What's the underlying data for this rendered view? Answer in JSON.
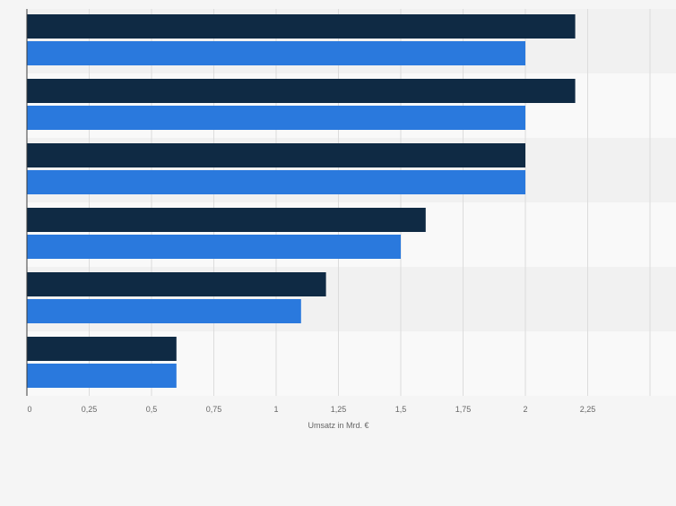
{
  "chart_data": {
    "type": "bar",
    "orientation": "horizontal",
    "categories": [
      "",
      "",
      "",
      "",
      "",
      ""
    ],
    "series": [
      {
        "values": [
          2.2,
          2.2,
          2.0,
          1.6,
          1.2,
          0.6
        ],
        "color": "#0f2a44"
      },
      {
        "values": [
          2.0,
          2.0,
          2.0,
          1.5,
          1.1,
          0.6
        ],
        "color": "#2a79dd"
      }
    ],
    "xlabel": "Umsatz in Mrd. €",
    "xlim": [
      0,
      2.5
    ],
    "xticks": [
      0,
      0.25,
      0.5,
      0.75,
      1,
      1.25,
      1.5,
      1.75,
      2,
      2.25
    ],
    "xtick_labels": [
      "0",
      "0,25",
      "0,5",
      "0,75",
      "1",
      "1,25",
      "1,5",
      "1,75",
      "2",
      "2,25"
    ],
    "grid": true,
    "legend": "none"
  }
}
